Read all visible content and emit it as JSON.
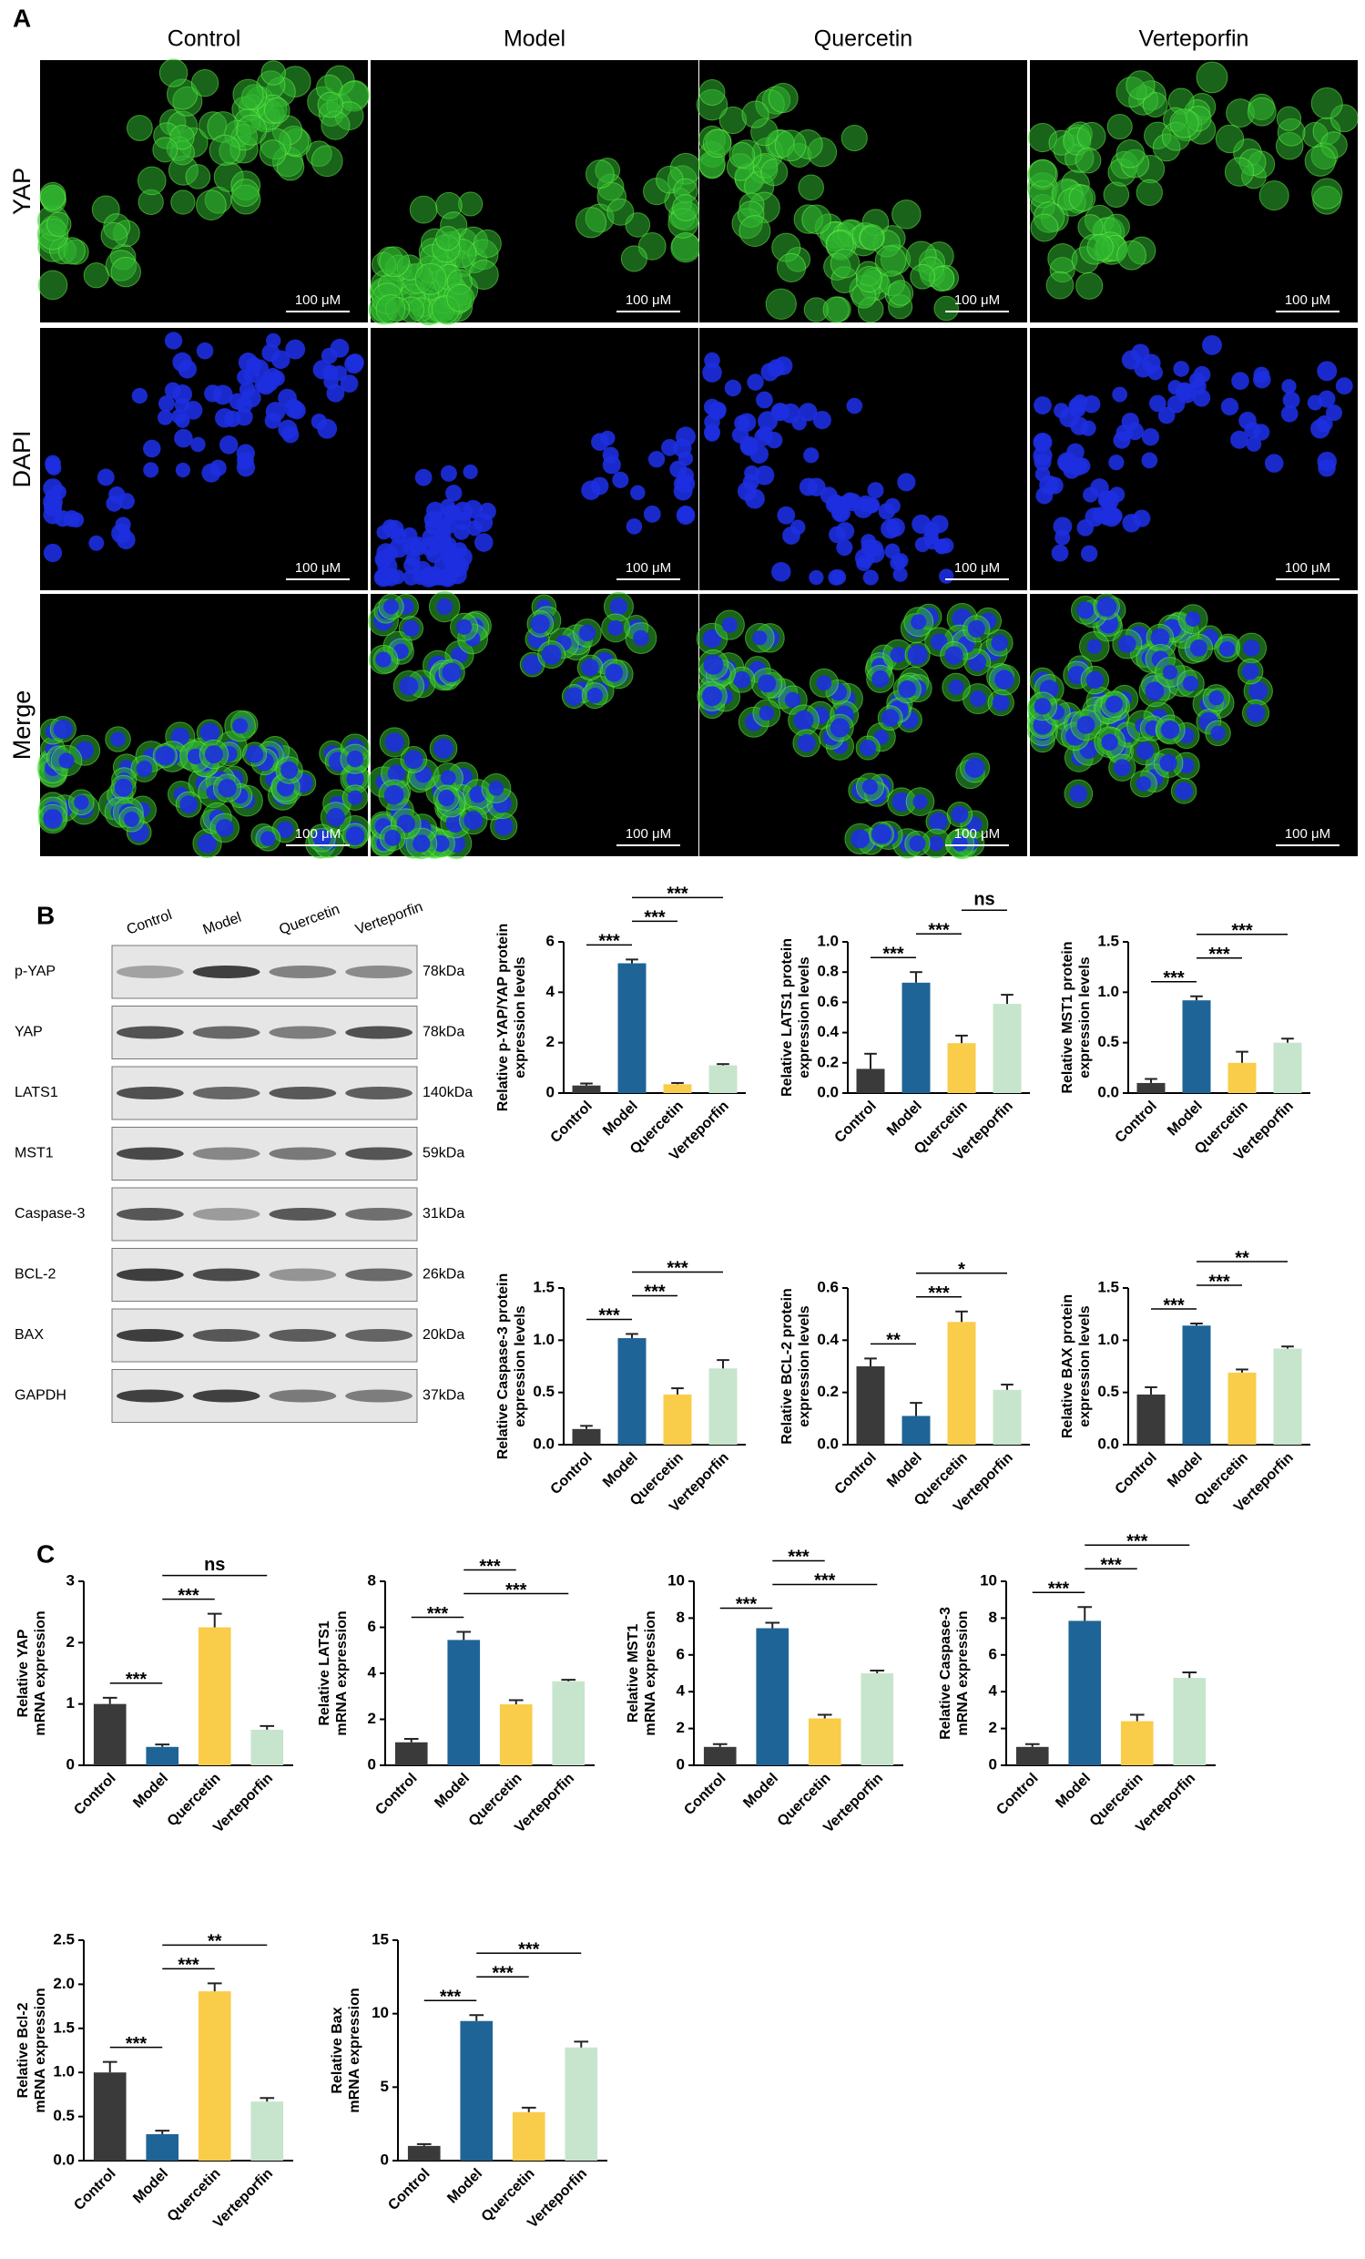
{
  "panel_a": {
    "label": "A",
    "columns": [
      "Control",
      "Model",
      "Quercetin",
      "Verteporfin"
    ],
    "rows": [
      "YAP",
      "DAPI",
      "Merge"
    ],
    "scale_bar": "100 μM"
  },
  "panel_b": {
    "label": "B",
    "lanes": [
      "Control",
      "Model",
      "Quercetin",
      "Verteporfin"
    ],
    "bands": [
      {
        "name": "p-YAP",
        "size": "78kDa"
      },
      {
        "name": "YAP",
        "size": "78kDa"
      },
      {
        "name": "LATS1",
        "size": "140kDa"
      },
      {
        "name": "MST1",
        "size": "59kDa"
      },
      {
        "name": "Caspase-3",
        "size": "31kDa"
      },
      {
        "name": "BCL-2",
        "size": "26kDa"
      },
      {
        "name": "BAX",
        "size": "20kDa"
      },
      {
        "name": "GAPDH",
        "size": "37kDa"
      }
    ]
  },
  "panel_c": {
    "label": "C"
  },
  "chart_data": [
    {
      "type": "bar",
      "ylabel": [
        "Relative p-YAP/YAP protein",
        "expression levels"
      ],
      "categories": [
        "Control",
        "Model",
        "Quercetin",
        "Verteporfin"
      ],
      "colors": [
        "#3a3a3a",
        "#1f6496",
        "#f9cc4a",
        "#c7e5cc"
      ],
      "values": [
        0.3,
        5.15,
        0.35,
        1.1
      ],
      "errors": [
        0.08,
        0.15,
        0.05,
        0.05
      ],
      "ylim": [
        0,
        6
      ],
      "yticks": [
        0,
        2,
        4,
        6
      ],
      "comparisons": [
        {
          "groups": [
            "Control",
            "Model"
          ],
          "label": "***"
        },
        {
          "groups": [
            "Model",
            "Quercetin"
          ],
          "label": "***"
        },
        {
          "groups": [
            "Model",
            "Verteporfin"
          ],
          "label": "***"
        }
      ]
    },
    {
      "type": "bar",
      "ylabel": [
        "Relative LATS1 protein",
        "expression levels"
      ],
      "categories": [
        "Control",
        "Model",
        "Quercetin",
        "Verteporfin"
      ],
      "colors": [
        "#3a3a3a",
        "#1f6496",
        "#f9cc4a",
        "#c7e5cc"
      ],
      "values": [
        0.16,
        0.73,
        0.33,
        0.59
      ],
      "errors": [
        0.1,
        0.07,
        0.05,
        0.06
      ],
      "ylim": [
        0,
        1
      ],
      "yticks": [
        {
          "value": 0,
          "label": "0.0"
        },
        0.2,
        0.4,
        0.6,
        0.8,
        {
          "value": 1,
          "label": "1.0"
        }
      ],
      "comparisons": [
        {
          "groups": [
            "Control",
            "Model"
          ],
          "label": "***"
        },
        {
          "groups": [
            "Model",
            "Quercetin"
          ],
          "label": "***"
        },
        {
          "groups": [
            "Quercetin",
            "Verteporfin"
          ],
          "label": "ns"
        }
      ]
    },
    {
      "type": "bar",
      "ylabel": [
        "Relative MST1 protein",
        "expression levels"
      ],
      "categories": [
        "Control",
        "Model",
        "Quercetin",
        "Verteporfin"
      ],
      "colors": [
        "#3a3a3a",
        "#1f6496",
        "#f9cc4a",
        "#c7e5cc"
      ],
      "values": [
        0.1,
        0.92,
        0.3,
        0.5
      ],
      "errors": [
        0.04,
        0.04,
        0.11,
        0.04
      ],
      "ylim": [
        0,
        1.5
      ],
      "yticks": [
        {
          "value": 0,
          "label": "0.0"
        },
        0.5,
        {
          "value": 1,
          "label": "1.0"
        },
        1.5
      ],
      "comparisons": [
        {
          "groups": [
            "Control",
            "Model"
          ],
          "label": "***"
        },
        {
          "groups": [
            "Model",
            "Quercetin"
          ],
          "label": "***"
        },
        {
          "groups": [
            "Model",
            "Verteporfin"
          ],
          "label": "***"
        }
      ]
    },
    {
      "type": "bar",
      "ylabel": [
        "Relative Caspase-3 protein",
        "expression levels"
      ],
      "categories": [
        "Control",
        "Model",
        "Quercetin",
        "Verteporfin"
      ],
      "colors": [
        "#3a3a3a",
        "#1f6496",
        "#f9cc4a",
        "#c7e5cc"
      ],
      "values": [
        0.15,
        1.02,
        0.48,
        0.73
      ],
      "errors": [
        0.03,
        0.04,
        0.06,
        0.08
      ],
      "ylim": [
        0,
        1.5
      ],
      "yticks": [
        {
          "value": 0,
          "label": "0.0"
        },
        0.5,
        {
          "value": 1,
          "label": "1.0"
        },
        1.5
      ],
      "comparisons": [
        {
          "groups": [
            "Control",
            "Model"
          ],
          "label": "***"
        },
        {
          "groups": [
            "Model",
            "Quercetin"
          ],
          "label": "***"
        },
        {
          "groups": [
            "Model",
            "Verteporfin"
          ],
          "label": "***"
        }
      ]
    },
    {
      "type": "bar",
      "ylabel": [
        "Relative BCL-2 protein",
        "expression levels"
      ],
      "categories": [
        "Control",
        "Model",
        "Quercetin",
        "Verteporfin"
      ],
      "colors": [
        "#3a3a3a",
        "#1f6496",
        "#f9cc4a",
        "#c7e5cc"
      ],
      "values": [
        0.3,
        0.11,
        0.47,
        0.21
      ],
      "errors": [
        0.03,
        0.05,
        0.04,
        0.02
      ],
      "ylim": [
        0,
        0.6
      ],
      "yticks": [
        {
          "value": 0,
          "label": "0.0"
        },
        0.2,
        0.4,
        0.6
      ],
      "comparisons": [
        {
          "groups": [
            "Control",
            "Model"
          ],
          "label": "**"
        },
        {
          "groups": [
            "Model",
            "Quercetin"
          ],
          "label": "***"
        },
        {
          "groups": [
            "Model",
            "Verteporfin"
          ],
          "label": "*"
        }
      ]
    },
    {
      "type": "bar",
      "ylabel": [
        "Relative BAX protein",
        "expression levels"
      ],
      "categories": [
        "Control",
        "Model",
        "Quercetin",
        "Verteporfin"
      ],
      "colors": [
        "#3a3a3a",
        "#1f6496",
        "#f9cc4a",
        "#c7e5cc"
      ],
      "values": [
        0.48,
        1.14,
        0.69,
        0.92
      ],
      "errors": [
        0.07,
        0.02,
        0.03,
        0.02
      ],
      "ylim": [
        0,
        1.5
      ],
      "yticks": [
        {
          "value": 0,
          "label": "0.0"
        },
        0.5,
        {
          "value": 1,
          "label": "1.0"
        },
        1.5
      ],
      "comparisons": [
        {
          "groups": [
            "Control",
            "Model"
          ],
          "label": "***"
        },
        {
          "groups": [
            "Model",
            "Quercetin"
          ],
          "label": "***"
        },
        {
          "groups": [
            "Model",
            "Verteporfin"
          ],
          "label": "**"
        }
      ]
    },
    {
      "type": "bar",
      "ylabel": [
        "Relative YAP",
        "mRNA expression"
      ],
      "categories": [
        "Control",
        "Model",
        "Quercetin",
        "Verteporfin"
      ],
      "colors": [
        "#3a3a3a",
        "#1f6496",
        "#f9cc4a",
        "#c7e5cc"
      ],
      "values": [
        1.0,
        0.3,
        2.25,
        0.58
      ],
      "errors": [
        0.1,
        0.04,
        0.22,
        0.06
      ],
      "ylim": [
        0,
        3
      ],
      "yticks": [
        0,
        1,
        2,
        3
      ],
      "comparisons": [
        {
          "groups": [
            "Control",
            "Model"
          ],
          "label": "***"
        },
        {
          "groups": [
            "Model",
            "Quercetin"
          ],
          "label": "***"
        },
        {
          "groups": [
            "Model",
            "Verteporfin"
          ],
          "label": "ns"
        }
      ]
    },
    {
      "type": "bar",
      "ylabel": [
        "Relative LATS1",
        "mRNA expression"
      ],
      "categories": [
        "Control",
        "Model",
        "Quercetin",
        "Verteporfin"
      ],
      "colors": [
        "#3a3a3a",
        "#1f6496",
        "#f9cc4a",
        "#c7e5cc"
      ],
      "values": [
        1.0,
        5.45,
        2.65,
        3.65
      ],
      "errors": [
        0.15,
        0.35,
        0.18,
        0.07
      ],
      "ylim": [
        0,
        8
      ],
      "yticks": [
        0,
        2,
        4,
        6,
        8
      ],
      "comparisons": [
        {
          "groups": [
            "Control",
            "Model"
          ],
          "label": "***"
        },
        {
          "groups": [
            "Model",
            "Verteporfin"
          ],
          "label": "***"
        },
        {
          "groups": [
            "Model",
            "Quercetin"
          ],
          "label": "***"
        }
      ]
    },
    {
      "type": "bar",
      "ylabel": [
        "Relative MST1",
        "mRNA expression"
      ],
      "categories": [
        "Control",
        "Model",
        "Quercetin",
        "Verteporfin"
      ],
      "colors": [
        "#3a3a3a",
        "#1f6496",
        "#f9cc4a",
        "#c7e5cc"
      ],
      "values": [
        1.0,
        7.45,
        2.55,
        5.0
      ],
      "errors": [
        0.15,
        0.3,
        0.2,
        0.15
      ],
      "ylim": [
        0,
        10
      ],
      "yticks": [
        0,
        2,
        4,
        6,
        8,
        10
      ],
      "comparisons": [
        {
          "groups": [
            "Control",
            "Model"
          ],
          "label": "***"
        },
        {
          "groups": [
            "Model",
            "Verteporfin"
          ],
          "label": "***"
        },
        {
          "groups": [
            "Model",
            "Quercetin"
          ],
          "label": "***"
        }
      ]
    },
    {
      "type": "bar",
      "ylabel": [
        "Relative Caspase-3",
        "mRNA expression"
      ],
      "categories": [
        "Control",
        "Model",
        "Quercetin",
        "Verteporfin"
      ],
      "colors": [
        "#3a3a3a",
        "#1f6496",
        "#f9cc4a",
        "#c7e5cc"
      ],
      "values": [
        1.0,
        7.85,
        2.4,
        4.75
      ],
      "errors": [
        0.15,
        0.75,
        0.35,
        0.3
      ],
      "ylim": [
        0,
        10
      ],
      "yticks": [
        0,
        2,
        4,
        6,
        8,
        10
      ],
      "comparisons": [
        {
          "groups": [
            "Control",
            "Model"
          ],
          "label": "***"
        },
        {
          "groups": [
            "Model",
            "Quercetin"
          ],
          "label": "***"
        },
        {
          "groups": [
            "Model",
            "Verteporfin"
          ],
          "label": "***"
        }
      ]
    },
    {
      "type": "bar",
      "ylabel": [
        "Relative Bcl-2",
        "mRNA expression"
      ],
      "categories": [
        "Control",
        "Model",
        "Quercetin",
        "Verteporfin"
      ],
      "colors": [
        "#3a3a3a",
        "#1f6496",
        "#f9cc4a",
        "#c7e5cc"
      ],
      "values": [
        1.0,
        0.3,
        1.92,
        0.67
      ],
      "errors": [
        0.12,
        0.04,
        0.09,
        0.04
      ],
      "ylim": [
        0,
        2.5
      ],
      "yticks": [
        {
          "value": 0,
          "label": "0.0"
        },
        0.5,
        {
          "value": 1,
          "label": "1.0"
        },
        1.5,
        {
          "value": 2,
          "label": "2.0"
        },
        2.5
      ],
      "comparisons": [
        {
          "groups": [
            "Control",
            "Model"
          ],
          "label": "***"
        },
        {
          "groups": [
            "Model",
            "Quercetin"
          ],
          "label": "***"
        },
        {
          "groups": [
            "Model",
            "Verteporfin"
          ],
          "label": "**"
        }
      ]
    },
    {
      "type": "bar",
      "ylabel": [
        "Relative Bax",
        "mRNA expression"
      ],
      "categories": [
        "Control",
        "Model",
        "Quercetin",
        "Verteporfin"
      ],
      "colors": [
        "#3a3a3a",
        "#1f6496",
        "#f9cc4a",
        "#c7e5cc"
      ],
      "values": [
        1.0,
        9.5,
        3.3,
        7.7
      ],
      "errors": [
        0.12,
        0.4,
        0.3,
        0.4
      ],
      "ylim": [
        0,
        15
      ],
      "yticks": [
        0,
        5,
        10,
        15
      ],
      "comparisons": [
        {
          "groups": [
            "Control",
            "Model"
          ],
          "label": "***"
        },
        {
          "groups": [
            "Model",
            "Quercetin"
          ],
          "label": "***"
        },
        {
          "groups": [
            "Model",
            "Verteporfin"
          ],
          "label": "***"
        }
      ]
    }
  ]
}
